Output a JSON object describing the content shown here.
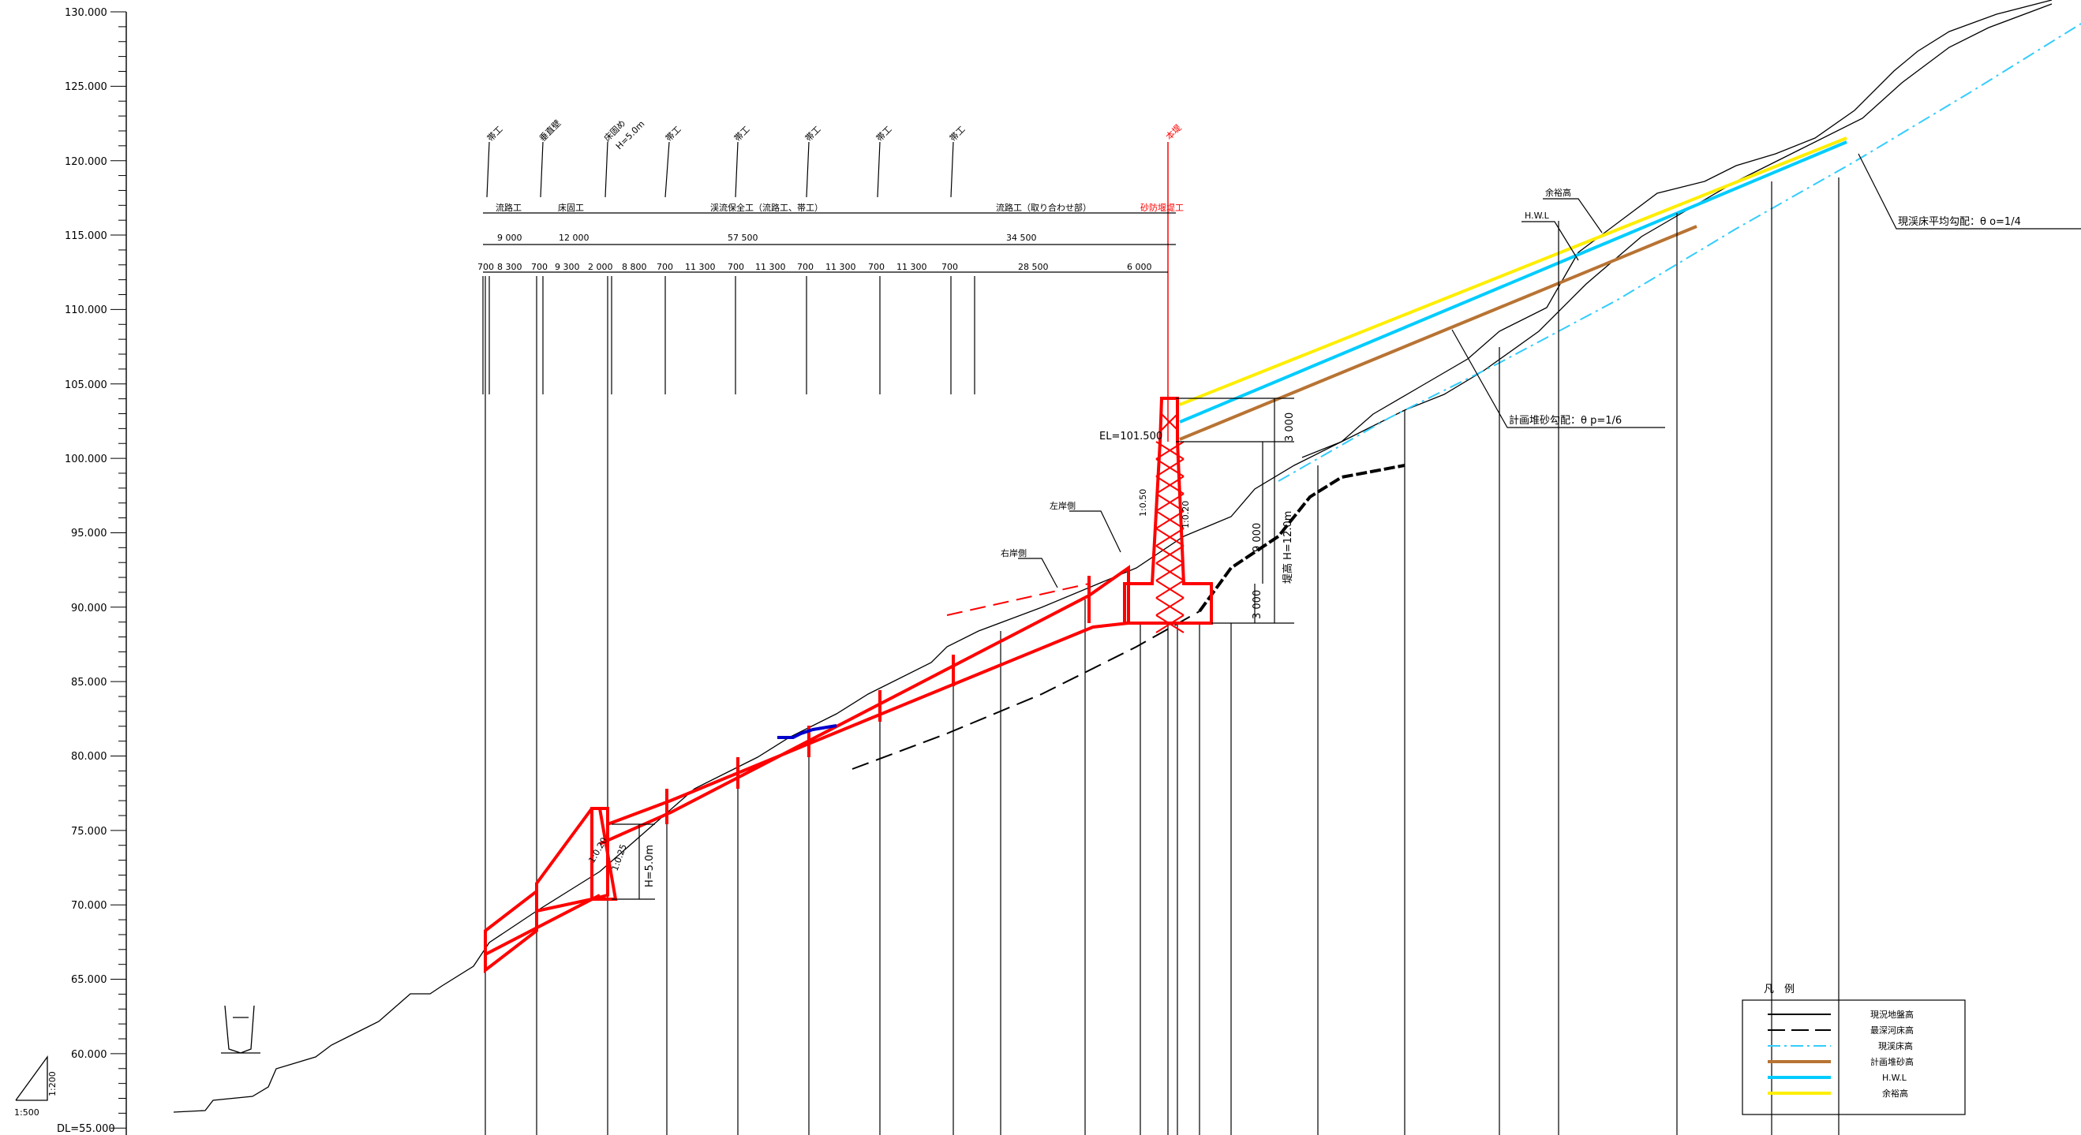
{
  "elevation_axis": {
    "labels": [
      "130.000",
      "125.000",
      "120.000",
      "115.000",
      "110.000",
      "105.000",
      "100.000",
      "95.000",
      "90.000",
      "85.000",
      "80.000",
      "75.000",
      "70.000",
      "65.000",
      "60.000",
      "55.000"
    ],
    "datum_label": "DL=55.000"
  },
  "scale": {
    "vertical": "1:200",
    "horizontal": "1:500"
  },
  "structure_markers": [
    "帯工",
    "垂直壁",
    "床固め",
    "帯工",
    "帯工",
    "帯工",
    "帯工",
    "帯工",
    "本堤"
  ],
  "floor_sill_height": "H=5.0m",
  "sections": [
    "流路工",
    "床固工",
    "渓流保全工（流路工、帯工）",
    "流路工（取り合わせ部）",
    "砂防堰堤工"
  ],
  "segment_lengths": [
    "9 000",
    "12 000",
    "57 500",
    "34 500"
  ],
  "detail_lengths": [
    "700",
    "8 300",
    "700",
    "9 300",
    "2 000",
    "8 800",
    "700",
    "11 300",
    "700",
    "11 300",
    "700",
    "11 300",
    "700",
    "11 300",
    "700",
    "28 500",
    "6 000"
  ],
  "annotations": {
    "crest_elevation": "EL=101.500",
    "dam_height": "堤高 H=12.0m",
    "upper_height": "3 000",
    "mid_height": "9 000",
    "lower_height": "3 000",
    "left_bank": "左岸側",
    "right_bank": "右岸側",
    "hwl": "H.W.L",
    "freeboard": "余裕高",
    "current_slope": "現渓床平均勾配：θ o=1/4",
    "planned_slope": "計画堆砂勾配：θ p=1/6",
    "sill_height": "H=5.0m",
    "sill_slope_a": "1:0.20",
    "sill_slope_b": "1:0.25",
    "dam_slope_a": "1:0.50",
    "dam_slope_b": "1:0.20"
  },
  "legend": {
    "title": "凡　例",
    "items": [
      {
        "label": "現況地盤高",
        "color": "#000000",
        "dash": "solid"
      },
      {
        "label": "最深河床高",
        "color": "#000000",
        "dash": "longdash"
      },
      {
        "label": "現渓床高",
        "color": "#33ccff",
        "dash": "dashdot"
      },
      {
        "label": "計画堆砂高",
        "color": "#b87333",
        "dash": "solid"
      },
      {
        "label": "H.W.L",
        "color": "#00ccff",
        "dash": "solid"
      },
      {
        "label": "余裕高",
        "color": "#ffee00",
        "dash": "solid"
      }
    ]
  },
  "colors": {
    "structure": "#ff0000",
    "hwl": "#00ccff",
    "freeboard": "#ffee00",
    "sediment": "#b87333",
    "riverbed": "#33ccff",
    "ground": "#000000",
    "water": "#0000cc"
  }
}
